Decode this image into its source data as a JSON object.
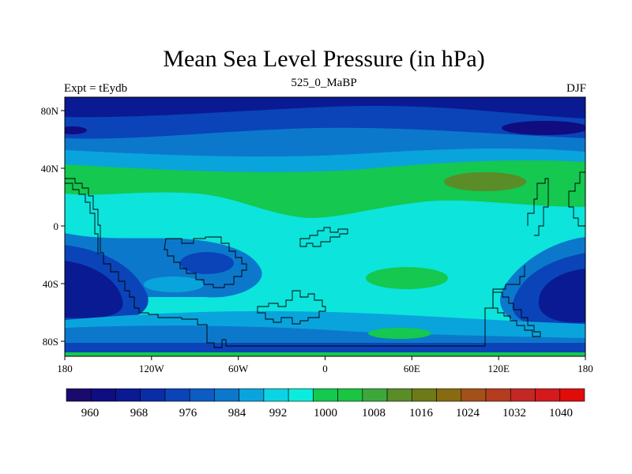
{
  "title": "Mean Sea Level Pressure (in hPa)",
  "subtitle_left": "Expt = tEydb",
  "subtitle_center": "525_0_MaBP",
  "subtitle_right": "DJF",
  "map": {
    "lon_ticks": [
      "180",
      "120W",
      "60W",
      "0",
      "60E",
      "120E",
      "180"
    ],
    "lat_ticks": [
      "80N",
      "40N",
      "0",
      "40S",
      "80S"
    ]
  },
  "colorbar": {
    "labels": [
      "960",
      "968",
      "976",
      "984",
      "992",
      "1000",
      "1008",
      "1016",
      "1024",
      "1032",
      "1040"
    ],
    "colors": [
      "#1a0a6e",
      "#100d80",
      "#0a1a92",
      "#0a2ca6",
      "#0a44b8",
      "#0c5cc4",
      "#0c78cc",
      "#0aa4dc",
      "#0cd4e4",
      "#0cecdc",
      "#14c850",
      "#1cc444",
      "#3ca83c",
      "#5a8c28",
      "#6e7a18",
      "#886a10",
      "#a4501a",
      "#b43c20",
      "#c42824",
      "#d41a1c",
      "#e00c0c"
    ]
  },
  "colors": {
    "deep_low": "#0a1a92",
    "low": "#0a44b8",
    "mid_low": "#0c78cc",
    "near_1000": "#0aa4dc",
    "cyan": "#0ce4dc",
    "green": "#14c850",
    "olive": "#5a8c28",
    "coast": "#000000"
  }
}
